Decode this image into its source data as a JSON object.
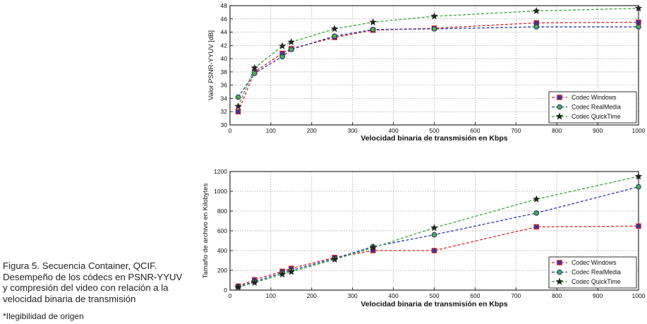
{
  "caption": {
    "lines": [
      "Figura 5. Secuencia Container, QCIF.",
      "Desempeño de los códecs en PSNR-YYUV",
      "y compresión del video con relación a la",
      "velocidad binaria de transmisión"
    ],
    "note": "*Ilegibilidad de origen"
  },
  "colors": {
    "windows": "#d9262b",
    "realmedia": "#2b3aa8",
    "quicktime": "#3aa53a",
    "axis": "#000000",
    "grid": "#9a9a9a"
  },
  "chart_data": [
    {
      "type": "line",
      "title": "",
      "xlabel": "Velocidad binaria de transmisión en Kbps",
      "ylabel": "Valor PSNR-YYUV [dB]",
      "xlim": [
        0,
        1000
      ],
      "ylim": [
        30,
        48
      ],
      "xticks": [
        0,
        100,
        200,
        300,
        400,
        500,
        600,
        700,
        800,
        900,
        1000
      ],
      "yticks": [
        30,
        32,
        34,
        36,
        38,
        40,
        42,
        44,
        46,
        48
      ],
      "grid": true,
      "legend_position": "bottom-right",
      "series": [
        {
          "name": "Codec Windows",
          "key": "windows",
          "marker": "square",
          "x": [
            20,
            60,
            128,
            150,
            256,
            350,
            500,
            750,
            1000
          ],
          "y": [
            32.0,
            38.0,
            40.8,
            41.5,
            43.2,
            44.3,
            44.6,
            45.4,
            45.5
          ]
        },
        {
          "name": "Codec RealMedia",
          "key": "realmedia",
          "marker": "circle",
          "x": [
            20,
            60,
            128,
            150,
            256,
            350,
            500,
            750,
            1000
          ],
          "y": [
            34.2,
            37.8,
            40.3,
            41.4,
            43.4,
            44.4,
            44.5,
            44.8,
            44.8
          ]
        },
        {
          "name": "Codec QuickTime",
          "key": "quicktime",
          "marker": "star",
          "x": [
            20,
            60,
            128,
            150,
            256,
            350,
            500,
            750,
            1000
          ],
          "y": [
            32.8,
            38.6,
            41.9,
            42.5,
            44.5,
            45.5,
            46.4,
            47.2,
            47.6
          ]
        }
      ]
    },
    {
      "type": "line",
      "title": "",
      "xlabel": "Velocidad binaria de transmisión en Kbps",
      "ylabel": "Tamaño de archivo en Kilobytes",
      "xlim": [
        0,
        1000
      ],
      "ylim": [
        0,
        1200
      ],
      "xticks": [
        0,
        100,
        200,
        300,
        400,
        500,
        600,
        700,
        800,
        900,
        1000
      ],
      "yticks": [
        0,
        200,
        400,
        600,
        800,
        1000,
        1200
      ],
      "grid": true,
      "legend_position": "bottom-right",
      "series": [
        {
          "name": "Codec Windows",
          "key": "windows",
          "marker": "square",
          "x": [
            20,
            60,
            128,
            150,
            256,
            350,
            500,
            750,
            1000
          ],
          "y": [
            40,
            105,
            190,
            220,
            330,
            400,
            400,
            640,
            648
          ]
        },
        {
          "name": "Codec RealMedia",
          "key": "realmedia",
          "marker": "circle",
          "x": [
            20,
            60,
            128,
            150,
            256,
            350,
            500,
            750,
            1000
          ],
          "y": [
            35,
            85,
            175,
            200,
            320,
            440,
            560,
            780,
            1045
          ]
        },
        {
          "name": "Codec QuickTime",
          "key": "quicktime",
          "marker": "star",
          "x": [
            20,
            60,
            128,
            150,
            256,
            350,
            500,
            750,
            1000
          ],
          "y": [
            30,
            75,
            160,
            185,
            310,
            430,
            630,
            920,
            1150
          ]
        }
      ]
    }
  ]
}
